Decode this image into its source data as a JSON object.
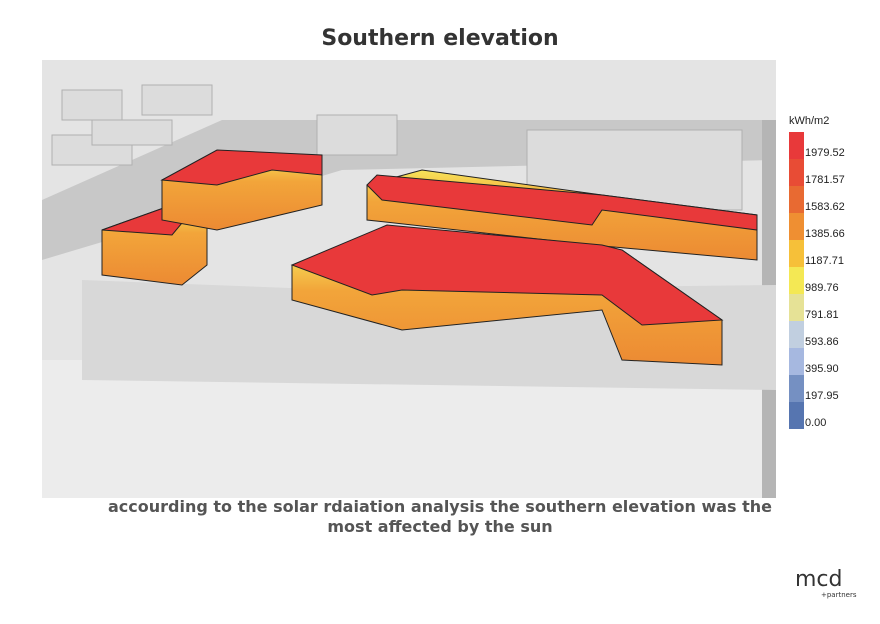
{
  "title": "Southern elevation",
  "legend": {
    "unit": "kWh/m2",
    "labels": [
      "1979.52",
      "1781.57",
      "1583.62",
      "1385.66",
      "1187.71",
      "989.76",
      "791.81",
      "593.86",
      "395.90",
      "197.95",
      "0.00"
    ],
    "colors": [
      "#e8393a",
      "#e84c35",
      "#e86a32",
      "#ef8f32",
      "#f6c039",
      "#f4e854",
      "#e6e296",
      "#c1cfe0",
      "#a6b8e0",
      "#7590c2",
      "#5675b0"
    ]
  },
  "caption": "accourding to the solar rdaiation analysis the southern elevation was the most affected by the sun",
  "logo": {
    "text": "mcd",
    "subtext": "+partners"
  }
}
